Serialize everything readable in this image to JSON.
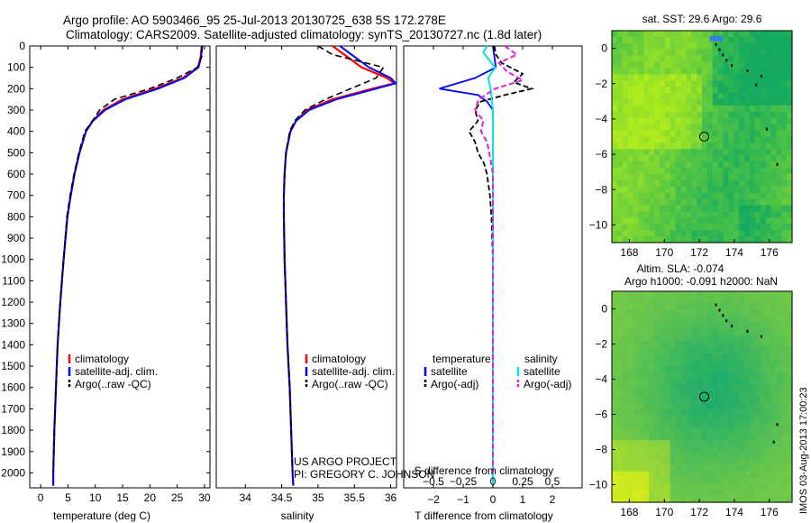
{
  "header": {
    "line1": "Argo profile: AO 5903466_95 25-Jul-2013 20130725_638 5S 172.278E",
    "line2": "Climatology: CARS2009. Satellite-adjusted climatology: synTS_20130727.nc (1.8d later)"
  },
  "project": {
    "line1": "US ARGO PROJECT",
    "line2": "PI: GREGORY C. JOHNSON"
  },
  "stamp": "IMOS 03-Aug-2013 17:00:23",
  "colors": {
    "climatology": "#ff0000",
    "satellite": "#0000ff",
    "argo": "#000000",
    "sal_sat": "#00e5e5",
    "sal_argo": "#e020e0"
  },
  "chart_data": [
    {
      "type": "line",
      "id": "temperature",
      "xlabel": "temperature (deg C)",
      "xlim": [
        -2,
        31
      ],
      "ylim": [
        2070,
        0
      ],
      "xticks": [
        0,
        5,
        10,
        15,
        20,
        25,
        30
      ],
      "xtick_labels": [
        "0",
        "5",
        "10",
        "15",
        "20",
        "25",
        "30"
      ],
      "yticks": [
        0,
        100,
        200,
        300,
        400,
        500,
        600,
        700,
        800,
        900,
        1000,
        1100,
        1200,
        1300,
        1400,
        1500,
        1600,
        1700,
        1800,
        1900,
        2000
      ],
      "ytick_labels": [
        "0",
        "100",
        "200",
        "300",
        "400",
        "500",
        "600",
        "700",
        "800",
        "900",
        "1000",
        "1100",
        "1200",
        "1300",
        "1400",
        "1500",
        "1600",
        "1700",
        "1800",
        "1900",
        "2000"
      ],
      "legend": [
        "climatology",
        "satellite-adj. clim.",
        "Argo(..raw -QC)"
      ],
      "series": [
        {
          "name": "climatology",
          "depth": [
            0,
            50,
            100,
            150,
            200,
            250,
            300,
            350,
            400,
            500,
            600,
            700,
            800,
            1000,
            1200,
            1400,
            1600,
            1800,
            2000,
            2060
          ],
          "values": [
            29.5,
            29.3,
            28.8,
            26,
            21,
            15,
            11.5,
            9.5,
            8.3,
            7.1,
            6.2,
            5.5,
            4.9,
            4.2,
            3.6,
            3.1,
            2.8,
            2.5,
            2.3,
            2.3
          ]
        },
        {
          "name": "satellite-adj. clim.",
          "depth": [
            0,
            50,
            100,
            150,
            200,
            250,
            300,
            350,
            400,
            500,
            600,
            700,
            800,
            1000,
            1200,
            1400,
            1600,
            1800,
            2000,
            2060
          ],
          "values": [
            29.5,
            29.4,
            28.9,
            26.3,
            21.5,
            15.5,
            11.8,
            9.6,
            8.3,
            7.1,
            6.2,
            5.5,
            4.9,
            4.2,
            3.6,
            3.1,
            2.8,
            2.5,
            2.3,
            2.3
          ]
        },
        {
          "name": "Argo(..raw -QC)",
          "depth": [
            0,
            50,
            100,
            150,
            200,
            250,
            300,
            350,
            400,
            500,
            600,
            700,
            800,
            1000,
            1200,
            1400,
            1600,
            1800,
            2000
          ],
          "values": [
            29.6,
            29.5,
            28.7,
            25,
            20,
            13.5,
            10.8,
            9.5,
            8.1,
            7.0,
            6.1,
            5.4,
            4.8,
            4.2,
            3.6,
            3.1,
            2.8,
            2.5,
            2.3
          ]
        }
      ]
    },
    {
      "type": "line",
      "id": "salinity",
      "xlabel": "salinity",
      "xlim": [
        33.6,
        36.08
      ],
      "ylim": [
        2070,
        0
      ],
      "xticks": [
        34,
        34.5,
        35,
        35.5,
        36
      ],
      "xtick_labels": [
        "34",
        "34.5",
        "35",
        "35.5",
        "36"
      ],
      "legend": [
        "climatology",
        "satellite-adj. clim.",
        "Argo(..raw -QC)"
      ],
      "series": [
        {
          "name": "climatology",
          "depth": [
            0,
            50,
            100,
            150,
            175,
            200,
            250,
            300,
            350,
            400,
            500,
            600,
            700,
            800,
            1000,
            1200,
            1400,
            1600,
            1800,
            2000,
            2060
          ],
          "values": [
            35.2,
            35.4,
            35.6,
            35.95,
            36.05,
            35.75,
            35.2,
            34.85,
            34.7,
            34.62,
            34.56,
            34.54,
            34.53,
            34.53,
            34.54,
            34.56,
            34.58,
            34.61,
            34.63,
            34.65,
            34.66
          ]
        },
        {
          "name": "satellite-adj. clim.",
          "depth": [
            0,
            50,
            100,
            150,
            175,
            200,
            250,
            300,
            350,
            400,
            500,
            600,
            700,
            800,
            1000,
            1200,
            1400,
            1600,
            1800,
            2000,
            2060
          ],
          "values": [
            35.3,
            35.5,
            35.7,
            36.0,
            36.07,
            35.8,
            35.25,
            34.88,
            34.7,
            34.62,
            34.56,
            34.54,
            34.53,
            34.53,
            34.54,
            34.56,
            34.58,
            34.61,
            34.63,
            34.65,
            34.66
          ]
        },
        {
          "name": "Argo(..raw -QC)",
          "depth": [
            0,
            40,
            70,
            100,
            150,
            200,
            250,
            300,
            350,
            400,
            500,
            600,
            700,
            800,
            1000,
            1200,
            1400,
            1600,
            1800,
            2000
          ],
          "values": [
            35.0,
            35.2,
            35.55,
            35.9,
            35.8,
            35.45,
            35.1,
            34.82,
            34.68,
            34.61,
            34.56,
            34.54,
            34.53,
            34.53,
            34.54,
            34.56,
            34.58,
            34.61,
            34.63,
            34.65
          ]
        }
      ]
    },
    {
      "type": "line",
      "id": "differences",
      "xlabel": "T difference from climatology",
      "xlabel2": "S difference from climatology",
      "xlim": [
        -3,
        3
      ],
      "ylim": [
        2070,
        0
      ],
      "xticks": [
        -2,
        -1,
        0,
        1,
        2
      ],
      "xtick_labels": [
        "−2",
        "−1",
        "0",
        "1",
        "2"
      ],
      "xticks2": [
        -0.5,
        -0.25,
        0,
        0.25,
        0.5
      ],
      "xtick_labels2": [
        "−0.5",
        "−0.25",
        "0",
        "0.25",
        "0.5"
      ],
      "legend": [
        "temperature",
        "satellite",
        "Argo(-adj)",
        "salinity",
        "satellite",
        "Argo(-adj)"
      ],
      "series": [
        {
          "name": "T satellite",
          "depth": [
            0,
            50,
            100,
            150,
            200,
            230,
            260,
            300,
            400,
            600,
            1000,
            2060
          ],
          "values": [
            0,
            0.05,
            0.1,
            -0.6,
            -1.8,
            -0.5,
            -0.2,
            0,
            0,
            0,
            0,
            0
          ]
        },
        {
          "name": "T Argo(-adj)",
          "depth": [
            0,
            40,
            80,
            130,
            170,
            200,
            230,
            260,
            300,
            350,
            400,
            450,
            500,
            550,
            600,
            700,
            800,
            1000,
            1500,
            2000
          ],
          "values": [
            0.05,
            0.1,
            0.3,
            1.0,
            0.7,
            1.3,
            0.4,
            -0.4,
            -0.6,
            -0.5,
            -0.8,
            -0.6,
            -0.5,
            -0.3,
            -0.2,
            -0.1,
            -0.05,
            0,
            0,
            0
          ]
        },
        {
          "name": "S satellite",
          "depth": [
            0,
            30,
            60,
            100,
            150,
            200,
            250,
            300,
            400,
            600,
            1000,
            2060
          ],
          "values": [
            -0.05,
            -0.08,
            -0.04,
            0.02,
            -0.04,
            -0.02,
            -0.01,
            0,
            0,
            0,
            0,
            0
          ]
        },
        {
          "name": "S Argo(-adj)",
          "depth": [
            0,
            40,
            80,
            120,
            160,
            200,
            250,
            300,
            350,
            400,
            450,
            500,
            600,
            700,
            800,
            1000,
            1500,
            2000
          ],
          "values": [
            0.1,
            0.2,
            0.05,
            0.12,
            0.25,
            0.02,
            -0.12,
            -0.15,
            -0.08,
            -0.1,
            -0.05,
            -0.03,
            0,
            0,
            0,
            0,
            0,
            0
          ]
        }
      ]
    },
    {
      "type": "heatmap",
      "id": "sst-map",
      "title": "sat. SST: 29.6 Argo: 29.6",
      "xticks": [
        168,
        170,
        172,
        174,
        176
      ],
      "xtick_labels": [
        "168",
        "170",
        "172",
        "174",
        "176"
      ],
      "yticks": [
        0,
        -2,
        -4,
        -6,
        -8,
        -10
      ],
      "ytick_labels": [
        "0",
        "−2",
        "−4",
        "−6",
        "−8",
        "−10"
      ],
      "xlim": [
        167,
        177.3
      ],
      "ylim": [
        1,
        -11
      ],
      "marker": {
        "lon": 172.278,
        "lat": -5
      }
    },
    {
      "type": "heatmap",
      "id": "sla-map",
      "title": "Altim. SLA: -0.074",
      "subtitle": "Argo h1000: -0.091 h2000: NaN",
      "xticks": [
        168,
        170,
        172,
        174,
        176
      ],
      "xtick_labels": [
        "168",
        "170",
        "172",
        "174",
        "176"
      ],
      "yticks": [
        0,
        -2,
        -4,
        -6,
        -8,
        -10
      ],
      "ytick_labels": [
        "0",
        "−2",
        "−4",
        "−6",
        "−8",
        "−10"
      ],
      "xlim": [
        167,
        177.3
      ],
      "ylim": [
        1,
        -11
      ],
      "marker": {
        "lon": 172.278,
        "lat": -5
      }
    }
  ]
}
